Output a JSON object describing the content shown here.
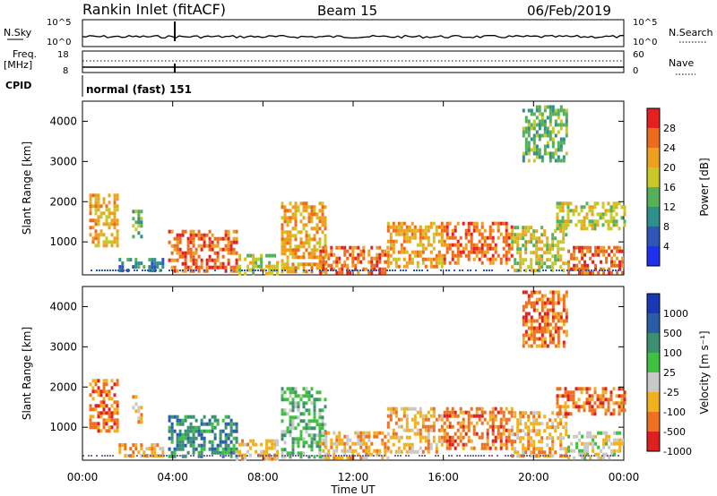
{
  "header": {
    "site": "Rankin Inlet (fitACF)",
    "beam": "Beam 15",
    "date": "06/Feb/2019"
  },
  "strip": {
    "nsky_label": "N.Sky",
    "nsky_ticks": [
      "10^5",
      "10^0"
    ],
    "nsearch_label": "N.Search",
    "nsearch_ticks": [
      "10^5",
      "10^0"
    ],
    "freq_label_1": "Freq.",
    "freq_label_2": "[MHz]",
    "freq_ticks": [
      "18",
      "8"
    ],
    "nave_label": "Nave",
    "nave_ticks": [
      "60",
      "0"
    ],
    "cpid_label": "CPID",
    "cpid_text": "normal (fast) 151"
  },
  "chart_data": [
    {
      "type": "heatmap",
      "name": "power",
      "ylabel": "Slant Range [km]",
      "ylim": [
        180,
        4500
      ],
      "yticks": [
        "1000",
        "2000",
        "3000",
        "4000"
      ],
      "colorbar_label": "Power [dB]",
      "colorbar_ticks": [
        "4",
        "8",
        "12",
        "16",
        "20",
        "24",
        "28"
      ],
      "colors": [
        "#1f2ff0",
        "#2e56b8",
        "#2f8f8a",
        "#56b05a",
        "#c8c828",
        "#f0a020",
        "#ee6a1c",
        "#e52020"
      ],
      "patches": [
        {
          "t": [
            0.3,
            1.5
          ],
          "r": [
            900,
            2200
          ],
          "v": 20
        },
        {
          "t": [
            2.2,
            2.6
          ],
          "r": [
            1100,
            1800
          ],
          "v": 14
        },
        {
          "t": [
            1.6,
            3.6
          ],
          "r": [
            250,
            600
          ],
          "v": 10
        },
        {
          "t": [
            3.8,
            6.8
          ],
          "r": [
            250,
            1300
          ],
          "v": 24
        },
        {
          "t": [
            6.8,
            8.6
          ],
          "r": [
            250,
            700
          ],
          "v": 18
        },
        {
          "t": [
            8.8,
            10.8
          ],
          "r": [
            250,
            2000
          ],
          "v": 22
        },
        {
          "t": [
            10.5,
            13.5
          ],
          "r": [
            250,
            900
          ],
          "v": 26
        },
        {
          "t": [
            13.5,
            16.0
          ],
          "r": [
            400,
            1500
          ],
          "v": 20
        },
        {
          "t": [
            16.0,
            19.0
          ],
          "r": [
            500,
            1500
          ],
          "v": 24
        },
        {
          "t": [
            19.0,
            21.5
          ],
          "r": [
            300,
            1400
          ],
          "v": 18
        },
        {
          "t": [
            21.5,
            24.0
          ],
          "r": [
            200,
            900
          ],
          "v": 26
        },
        {
          "t": [
            21.0,
            24.0
          ],
          "r": [
            1300,
            2000
          ],
          "v": 16
        },
        {
          "t": [
            19.5,
            21.5
          ],
          "r": [
            3000,
            4400
          ],
          "v": 14
        }
      ]
    },
    {
      "type": "heatmap",
      "name": "velocity",
      "ylabel": "Slant Range [km]",
      "ylim": [
        180,
        4500
      ],
      "yticks": [
        "1000",
        "2000",
        "3000",
        "4000"
      ],
      "colorbar_label": "Velocity [m s⁻¹]",
      "colorbar_ticks": [
        "1000",
        "500",
        "100",
        "25",
        "-25",
        "-100",
        "-500",
        "-1000"
      ],
      "colors": [
        "#1838b8",
        "#2a5ca8",
        "#3a9070",
        "#40c040",
        "#c8c8c8",
        "#f0b020",
        "#ee7020",
        "#e02020"
      ],
      "patches": [
        {
          "t": [
            0.3,
            1.5
          ],
          "r": [
            900,
            2200
          ],
          "v": -500
        },
        {
          "t": [
            2.2,
            2.6
          ],
          "r": [
            1100,
            1800
          ],
          "v": -100
        },
        {
          "t": [
            1.6,
            3.6
          ],
          "r": [
            250,
            600
          ],
          "v": -100
        },
        {
          "t": [
            3.8,
            6.8
          ],
          "r": [
            250,
            1300
          ],
          "v": 100
        },
        {
          "t": [
            6.8,
            8.6
          ],
          "r": [
            250,
            700
          ],
          "v": -100
        },
        {
          "t": [
            8.8,
            10.8
          ],
          "r": [
            250,
            2000
          ],
          "v": 25
        },
        {
          "t": [
            10.5,
            13.5
          ],
          "r": [
            250,
            900
          ],
          "v": -100
        },
        {
          "t": [
            13.5,
            16.0
          ],
          "r": [
            400,
            1500
          ],
          "v": -100
        },
        {
          "t": [
            16.0,
            19.0
          ],
          "r": [
            500,
            1500
          ],
          "v": -500
        },
        {
          "t": [
            19.0,
            21.5
          ],
          "r": [
            300,
            1400
          ],
          "v": -100
        },
        {
          "t": [
            21.5,
            24.0
          ],
          "r": [
            200,
            900
          ],
          "v": -25
        },
        {
          "t": [
            21.0,
            24.0
          ],
          "r": [
            1300,
            2000
          ],
          "v": -500
        },
        {
          "t": [
            19.5,
            21.5
          ],
          "r": [
            3000,
            4400
          ],
          "v": -500
        }
      ]
    }
  ],
  "xaxis": {
    "label": "Time UT",
    "ticks": [
      "00:00",
      "04:00",
      "08:00",
      "12:00",
      "16:00",
      "20:00",
      "00:00"
    ],
    "range_hours": [
      0,
      24
    ]
  }
}
